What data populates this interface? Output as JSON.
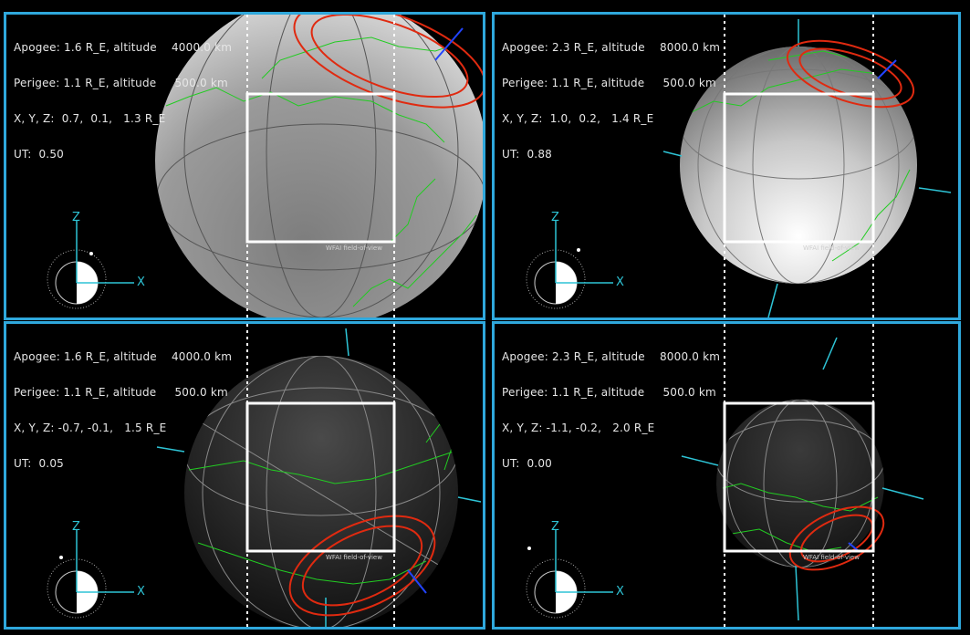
{
  "panels": [
    {
      "apogee": "Apogee: 1.6 R_E, altitude    4000.0 km",
      "perigee": "Perigee: 1.1 R_E, altitude     500.0 km",
      "xyz": "X, Y, Z:  0.7,  0.1,   1.3 R_E",
      "ut": "UT:  0.50",
      "fov_label": "WFAI field-of-view",
      "axis_z": "Z",
      "axis_x": "X"
    },
    {
      "apogee": "Apogee: 2.3 R_E, altitude    8000.0 km",
      "perigee": "Perigee: 1.1 R_E, altitude     500.0 km",
      "xyz": "X, Y, Z:  1.0,  0.2,   1.4 R_E",
      "ut": "UT:  0.88",
      "fov_label": "WFAI field-of-view",
      "axis_z": "Z",
      "axis_x": "X"
    },
    {
      "apogee": "Apogee: 1.6 R_E, altitude    4000.0 km",
      "perigee": "Perigee: 1.1 R_E, altitude     500.0 km",
      "xyz": "X, Y, Z: -0.7, -0.1,   1.5 R_E",
      "ut": "UT:  0.05",
      "fov_label": "WFAI field-of-view",
      "axis_z": "Z",
      "axis_x": "X"
    },
    {
      "apogee": "Apogee: 2.3 R_E, altitude    8000.0 km",
      "perigee": "Perigee: 1.1 R_E, altitude     500.0 km",
      "xyz": "X, Y, Z: -1.1, -0.2,   2.0 R_E",
      "ut": "UT:  0.00",
      "fov_label": "WFAI field-of-view",
      "axis_z": "Z",
      "axis_x": "X"
    }
  ],
  "colors": {
    "border": "#2fa8dc",
    "coast": "#22cc22",
    "oval": "#e02a10",
    "axis": "#2ec4d6",
    "fov": "#ffffff"
  }
}
